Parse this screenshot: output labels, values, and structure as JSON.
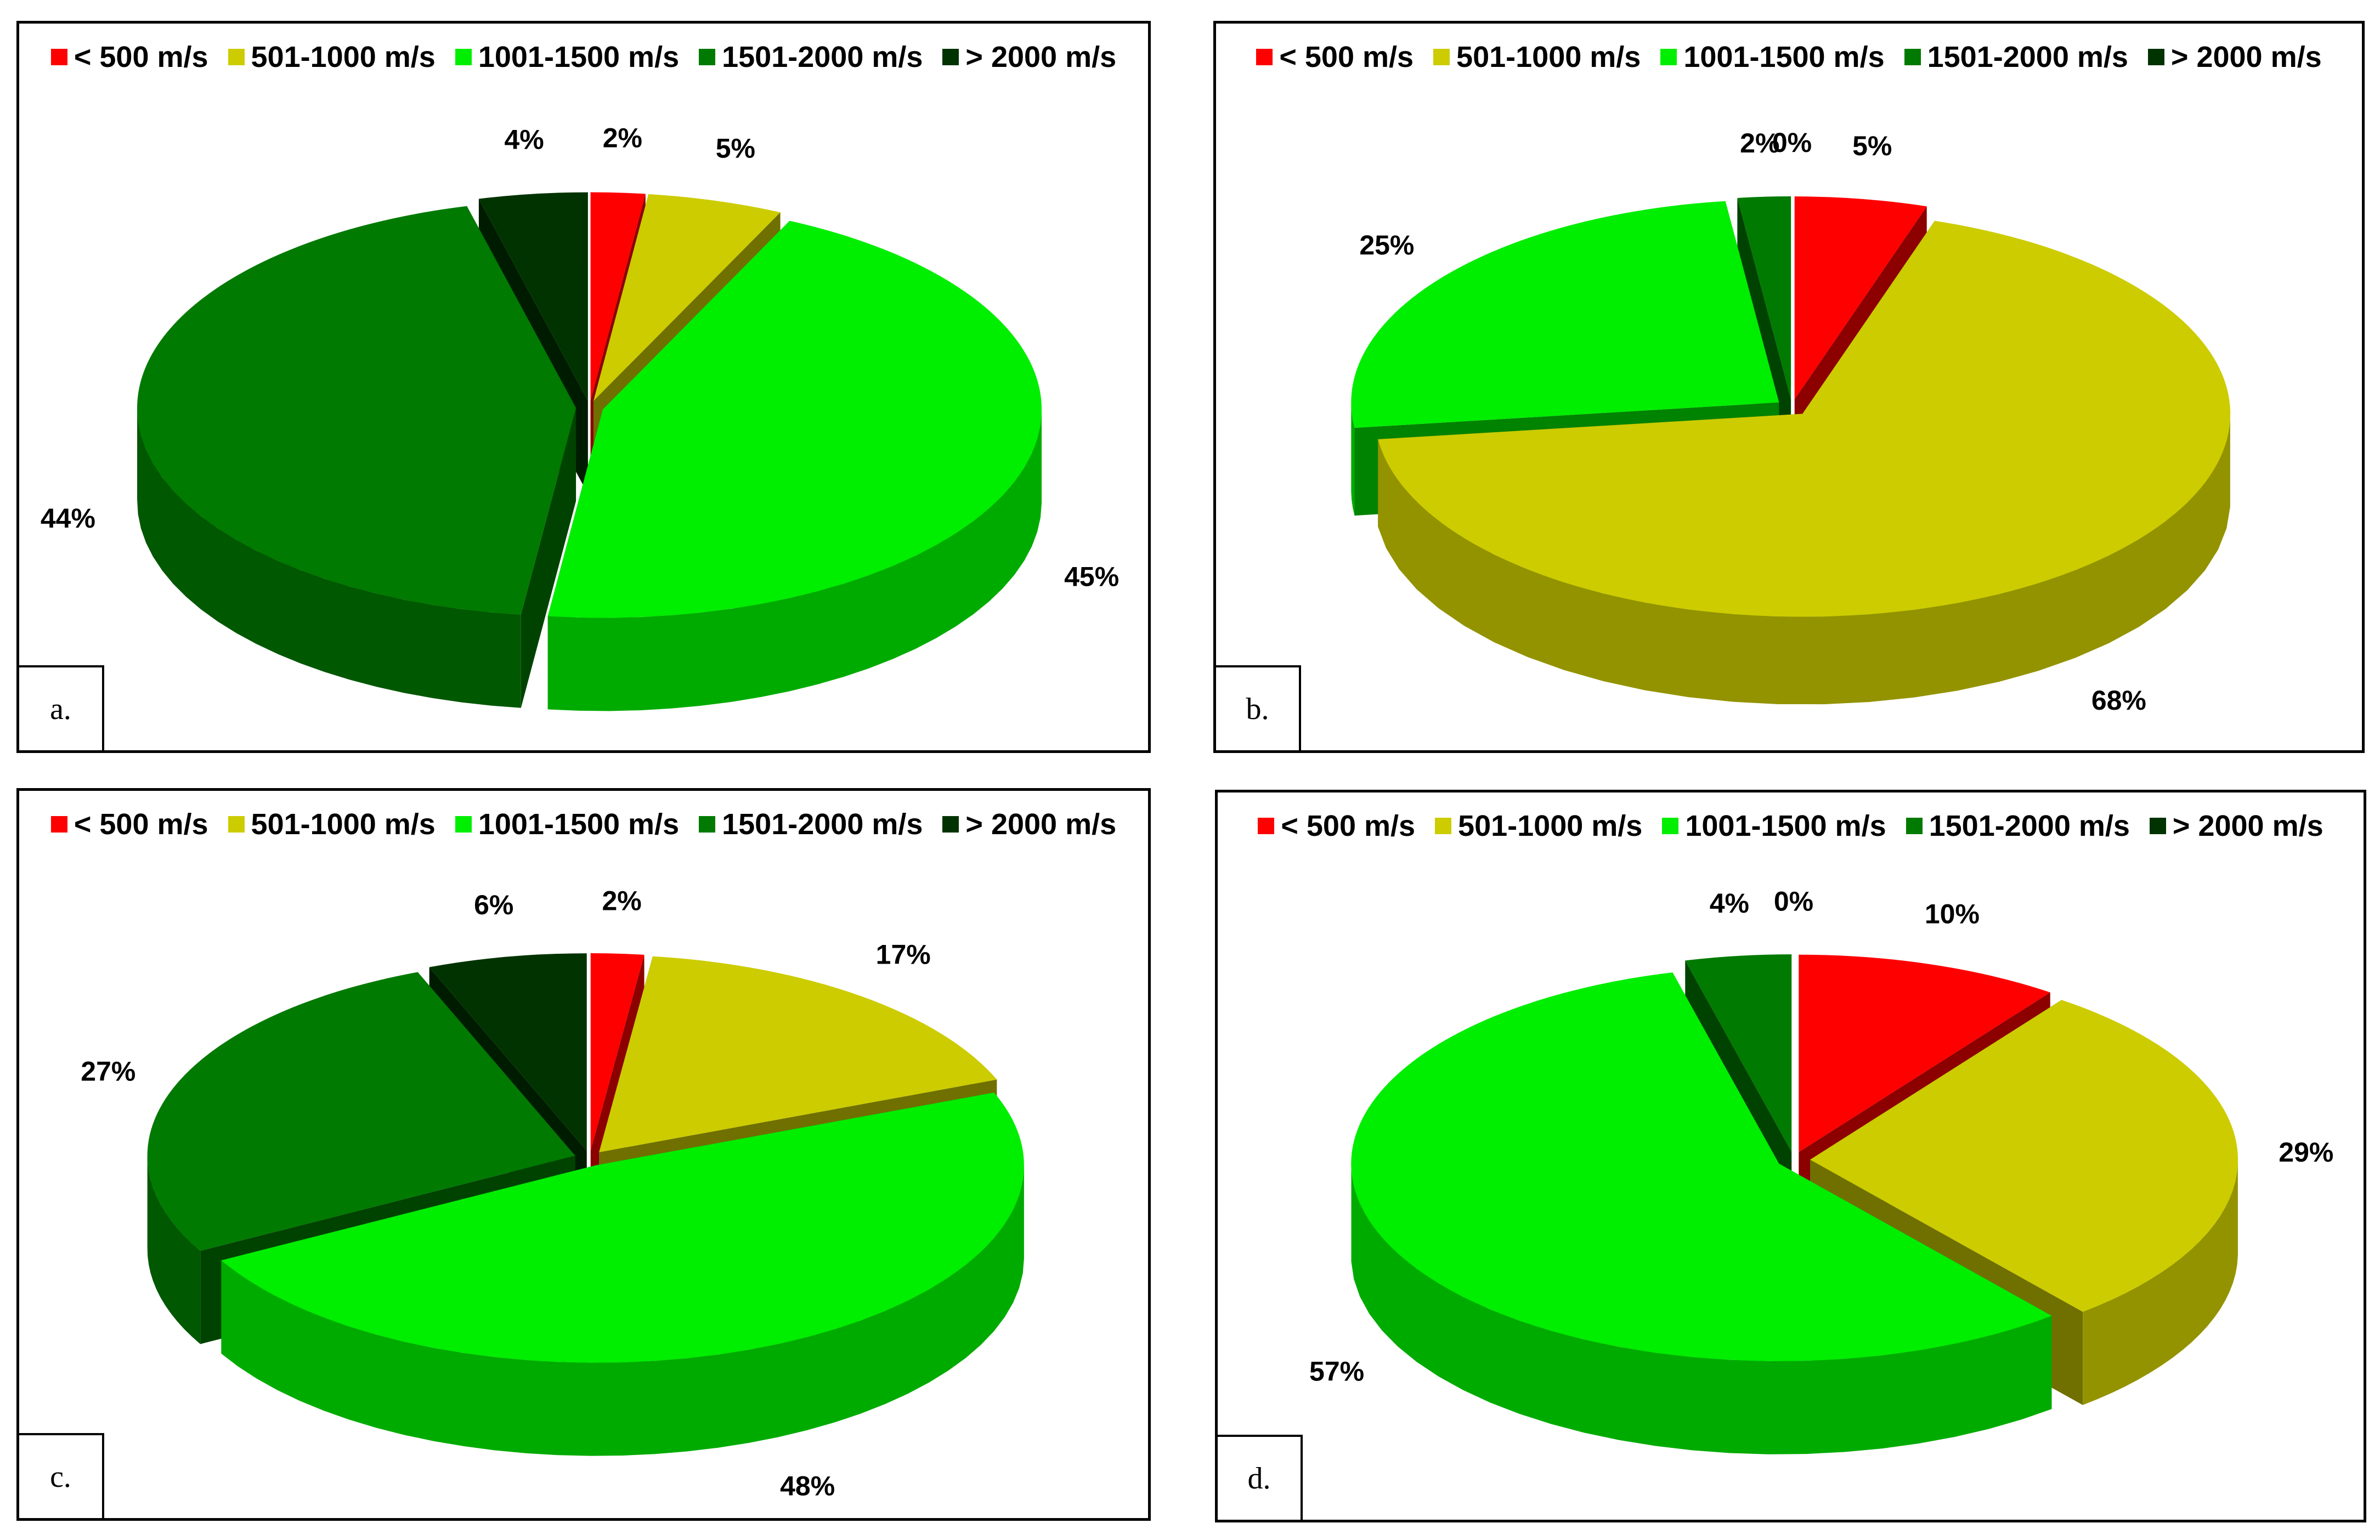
{
  "chart_data": [
    {
      "type": "pie",
      "panel": "a.",
      "categories": [
        "< 500 m/s",
        "501-1000 m/s",
        "1001-1500 m/s",
        "1501-2000 m/s",
        "> 2000 m/s"
      ],
      "values": [
        2,
        5,
        45,
        44,
        4
      ],
      "labels": [
        "2%",
        "5%",
        "45%",
        "44%",
        "4%"
      ]
    },
    {
      "type": "pie",
      "panel": "b.",
      "categories": [
        "< 500 m/s",
        "501-1000 m/s",
        "1001-1500 m/s",
        "1501-2000 m/s",
        "> 2000 m/s"
      ],
      "values": [
        5,
        68,
        25,
        2,
        0
      ],
      "labels": [
        "5%",
        "68%",
        "25%",
        "2%",
        "0%"
      ]
    },
    {
      "type": "pie",
      "panel": "c.",
      "categories": [
        "< 500 m/s",
        "501-1000 m/s",
        "1001-1500 m/s",
        "1501-2000 m/s",
        "> 2000 m/s"
      ],
      "values": [
        2,
        17,
        48,
        27,
        6
      ],
      "labels": [
        "2%",
        "17%",
        "48%",
        "27%",
        "6%"
      ]
    },
    {
      "type": "pie",
      "panel": "d.",
      "categories": [
        "< 500 m/s",
        "501-1000 m/s",
        "1001-1500 m/s",
        "1501-2000 m/s",
        "> 2000 m/s"
      ],
      "values": [
        10,
        29,
        57,
        4,
        0
      ],
      "labels": [
        "10%",
        "29%",
        "57%",
        "4%",
        "0%"
      ]
    }
  ],
  "colors": [
    "#ff0000",
    "#cccc00",
    "#00ee00",
    "#007a00",
    "#003300"
  ]
}
